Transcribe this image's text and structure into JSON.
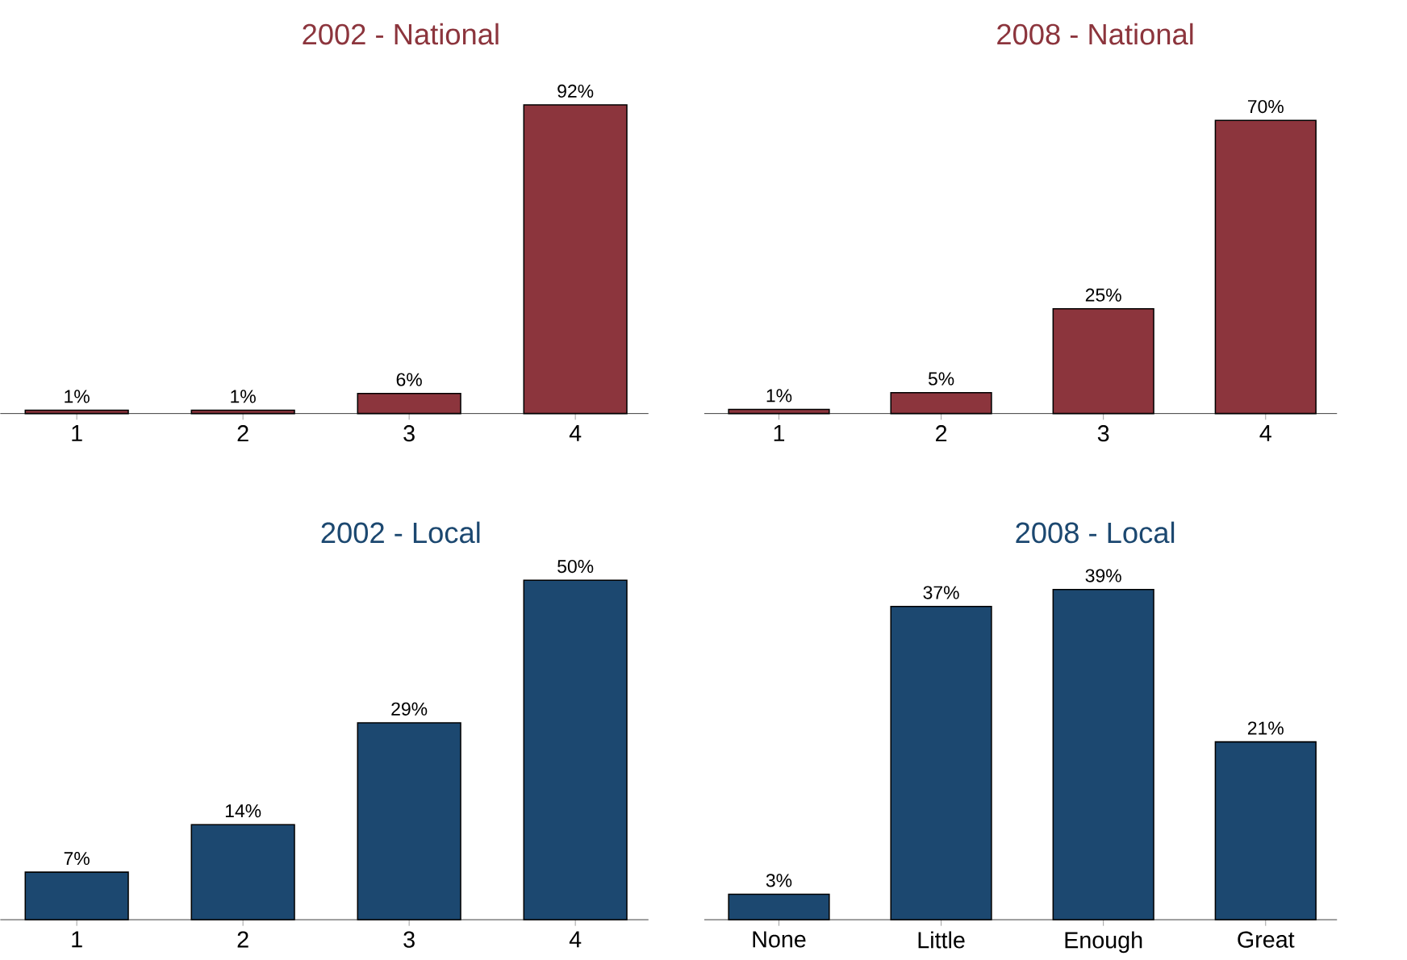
{
  "chart_data": [
    {
      "type": "bar",
      "title": "2002 - National",
      "categories": [
        "1",
        "2",
        "3",
        "4"
      ],
      "series": [
        {
          "color": "#8c353d",
          "values": [
            1,
            1,
            6,
            92
          ],
          "value_labels": [
            "1%",
            "1%",
            "6%",
            "92%"
          ]
        }
      ]
    },
    {
      "type": "bar",
      "title": "2008 - National",
      "categories": [
        "1",
        "2",
        "3",
        "4"
      ],
      "series": [
        {
          "color": "#8c353d",
          "values": [
            1,
            5,
            25,
            70
          ],
          "value_labels": [
            "1%",
            "5%",
            "25%",
            "70%"
          ]
        }
      ]
    },
    {
      "type": "bar",
      "title": "2002 - Local",
      "categories": [
        "1",
        "2",
        "3",
        "4"
      ],
      "series": [
        {
          "color": "#1c4870",
          "values": [
            7,
            14,
            29,
            50
          ],
          "value_labels": [
            "7%",
            "14%",
            "29%",
            "50%"
          ]
        }
      ]
    },
    {
      "type": "bar",
      "title": "2008 - Local",
      "categories": [
        "None",
        "Little",
        "Enough",
        "Great"
      ],
      "series": [
        {
          "color": "#1c4870",
          "values": [
            3,
            37,
            39,
            21
          ],
          "value_labels": [
            "3%",
            "37%",
            "39%",
            "21%"
          ]
        }
      ]
    }
  ]
}
